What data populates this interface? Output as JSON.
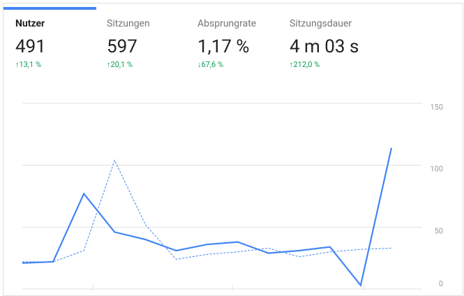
{
  "metrics": [
    {
      "label": "Nutzer",
      "value": "491",
      "change": "↑13,1 %"
    },
    {
      "label": "Sitzungen",
      "value": "597",
      "change": "↑20,1 %"
    },
    {
      "label": "Absprungrate",
      "value": "1,17 %",
      "change": "↓67,6 %"
    },
    {
      "label": "Sitzungsdauer",
      "value": "4 m 03 s",
      "change": "↑212,0 %"
    }
  ],
  "chart_data": {
    "type": "line",
    "categories": [
      null,
      null,
      null,
      null,
      null,
      null,
      null,
      null,
      null,
      null,
      null,
      null,
      null
    ],
    "series": [
      {
        "color": "#4285f4",
        "values": [
          21,
          22,
          77,
          46,
          40,
          31,
          36,
          38,
          29,
          31,
          34,
          3,
          114
        ]
      },
      {
        "color": "#4285f4",
        "dashed": true,
        "values": [
          22,
          22,
          31,
          104,
          52,
          24,
          28,
          30,
          33,
          26,
          30,
          32,
          33
        ]
      }
    ],
    "ylim": [
      0,
      150
    ],
    "yticks": [
      0,
      50,
      100,
      150
    ],
    "grid": true
  }
}
